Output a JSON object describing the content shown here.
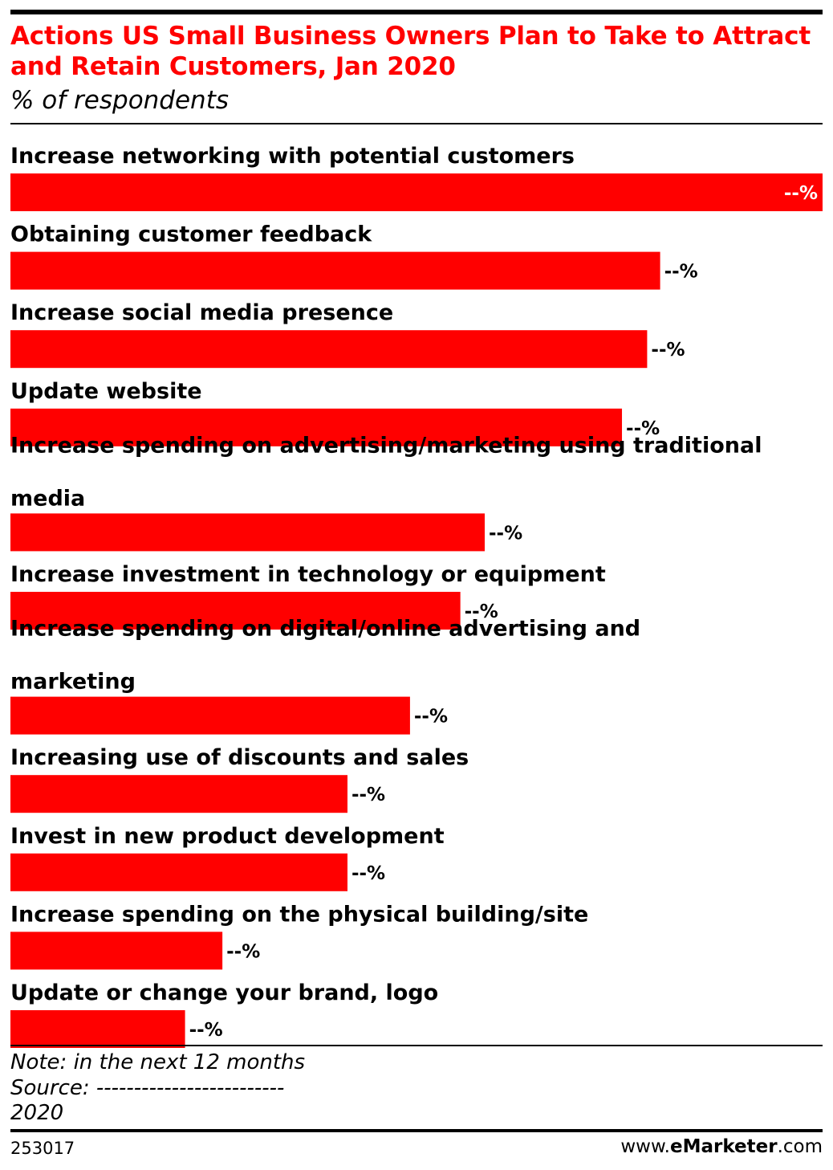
{
  "header": {
    "title": "Actions US Small Business Owners Plan to Take to Attract and Retain Customers, Jan 2020",
    "subtitle": "% of respondents"
  },
  "chart_data": {
    "type": "bar",
    "orientation": "horizontal",
    "title": "Actions US Small Business Owners Plan to Take to Attract and Retain Customers, Jan 2020",
    "subtitle": "% of respondents",
    "categories": [
      "Increase networking with potential customers",
      "Obtaining customer feedback",
      "Increase social media presence",
      "Update website",
      "Increase spending on advertising/marketing using traditional media",
      "Increase investment in technology or equipment",
      "Increase spending on digital/online advertising and marketing",
      "Increasing use of discounts and sales",
      "Invest in new product development",
      "Increase spending on the physical building/site",
      "Update or change your brand, logo"
    ],
    "values": [
      100,
      80,
      78.4,
      75.3,
      58.4,
      55.4,
      49.2,
      41.5,
      41.5,
      26.1,
      21.5
    ],
    "value_labels": [
      "--%",
      "--%",
      "--%",
      "--%",
      "--%",
      "--%",
      "--%",
      "--%",
      "--%",
      "--%",
      "--%"
    ],
    "bar_color": "#ff0000",
    "grid": false
  },
  "footer": {
    "note": "Note: in the next 12 months",
    "source": "Source: -------------------------",
    "year": "2020",
    "chart_id": "253017",
    "brand_prefix": "www.",
    "brand_name": "eMarketer",
    "brand_suffix": ".com"
  }
}
